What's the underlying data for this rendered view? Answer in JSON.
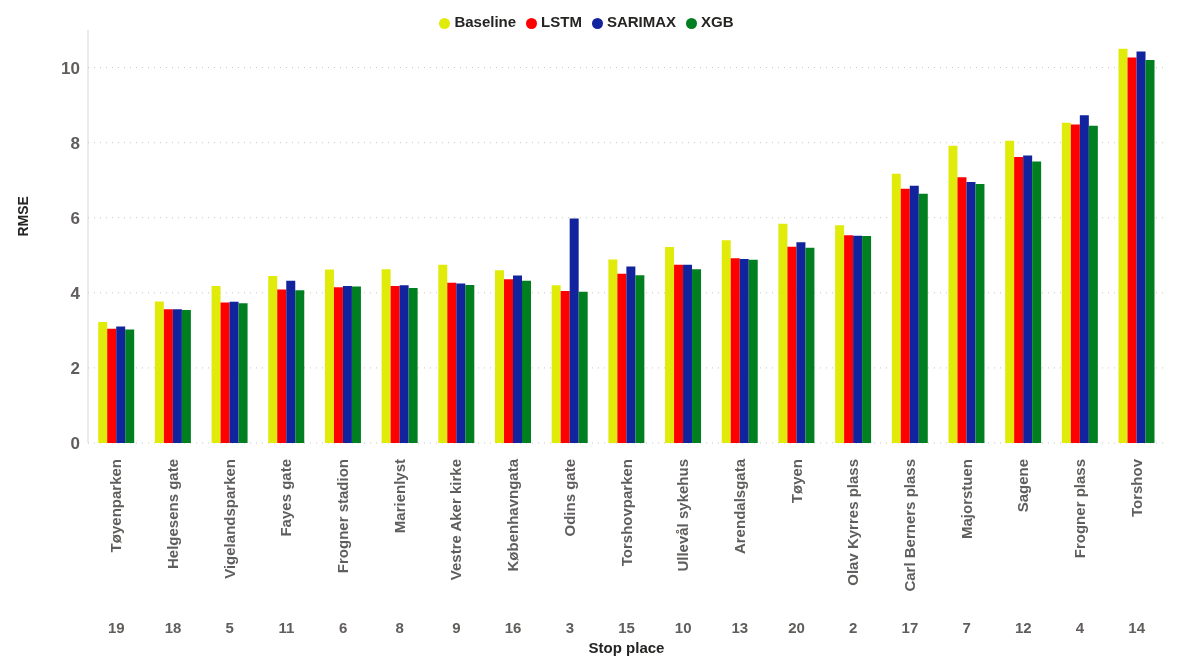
{
  "chart_data": {
    "type": "bar",
    "xlabel": "Stop place",
    "ylabel": "RMSE",
    "categories": [
      "Tøyenparken",
      "Helgesens gate",
      "Vigelandsparken",
      "Fayes gate",
      "Frogner stadion",
      "Marienlyst",
      "Vestre Aker kirke",
      "Københavngata",
      "Odins gate",
      "Torshovparken",
      "Ullevål sykehus",
      "Arendalsgata",
      "Tøyen",
      "Olav Kyrres plass",
      "Carl Berners plass",
      "Majorstuen",
      "Sagene",
      "Frogner plass",
      "Torshov"
    ],
    "series": [
      {
        "name": "Baseline",
        "color": "#e1eb0a",
        "values": [
          3.22,
          3.77,
          4.18,
          4.45,
          4.62,
          4.63,
          4.75,
          4.6,
          4.2,
          4.89,
          5.22,
          5.4,
          5.84,
          5.8,
          7.17,
          7.92,
          8.05,
          8.53,
          10.5
        ]
      },
      {
        "name": "LSTM",
        "color": "#ff0000",
        "values": [
          3.04,
          3.56,
          3.74,
          4.09,
          4.15,
          4.18,
          4.27,
          4.36,
          4.05,
          4.51,
          4.75,
          4.92,
          5.23,
          5.53,
          6.77,
          7.08,
          7.62,
          8.48,
          10.27
        ]
      },
      {
        "name": "SARIMAX",
        "color": "#12239e",
        "values": [
          3.1,
          3.56,
          3.76,
          4.32,
          4.18,
          4.2,
          4.25,
          4.46,
          5.98,
          4.7,
          4.75,
          4.9,
          5.35,
          5.52,
          6.85,
          6.95,
          7.66,
          8.73,
          10.43
        ]
      },
      {
        "name": "XGB",
        "color": "#007f20",
        "values": [
          3.02,
          3.54,
          3.72,
          4.07,
          4.17,
          4.13,
          4.21,
          4.32,
          4.03,
          4.47,
          4.63,
          4.88,
          5.2,
          5.51,
          6.64,
          6.9,
          7.5,
          8.45,
          10.2
        ]
      }
    ],
    "annotations": [
      "19",
      "18",
      "5",
      "11",
      "6",
      "8",
      "9",
      "16",
      "3",
      "15",
      "10",
      "13",
      "20",
      "2",
      "17",
      "7",
      "12",
      "4",
      "14"
    ],
    "ylim": [
      0,
      11
    ],
    "yticks": [
      0,
      2,
      4,
      6,
      8,
      10
    ],
    "grid": "y",
    "legend": "top"
  }
}
